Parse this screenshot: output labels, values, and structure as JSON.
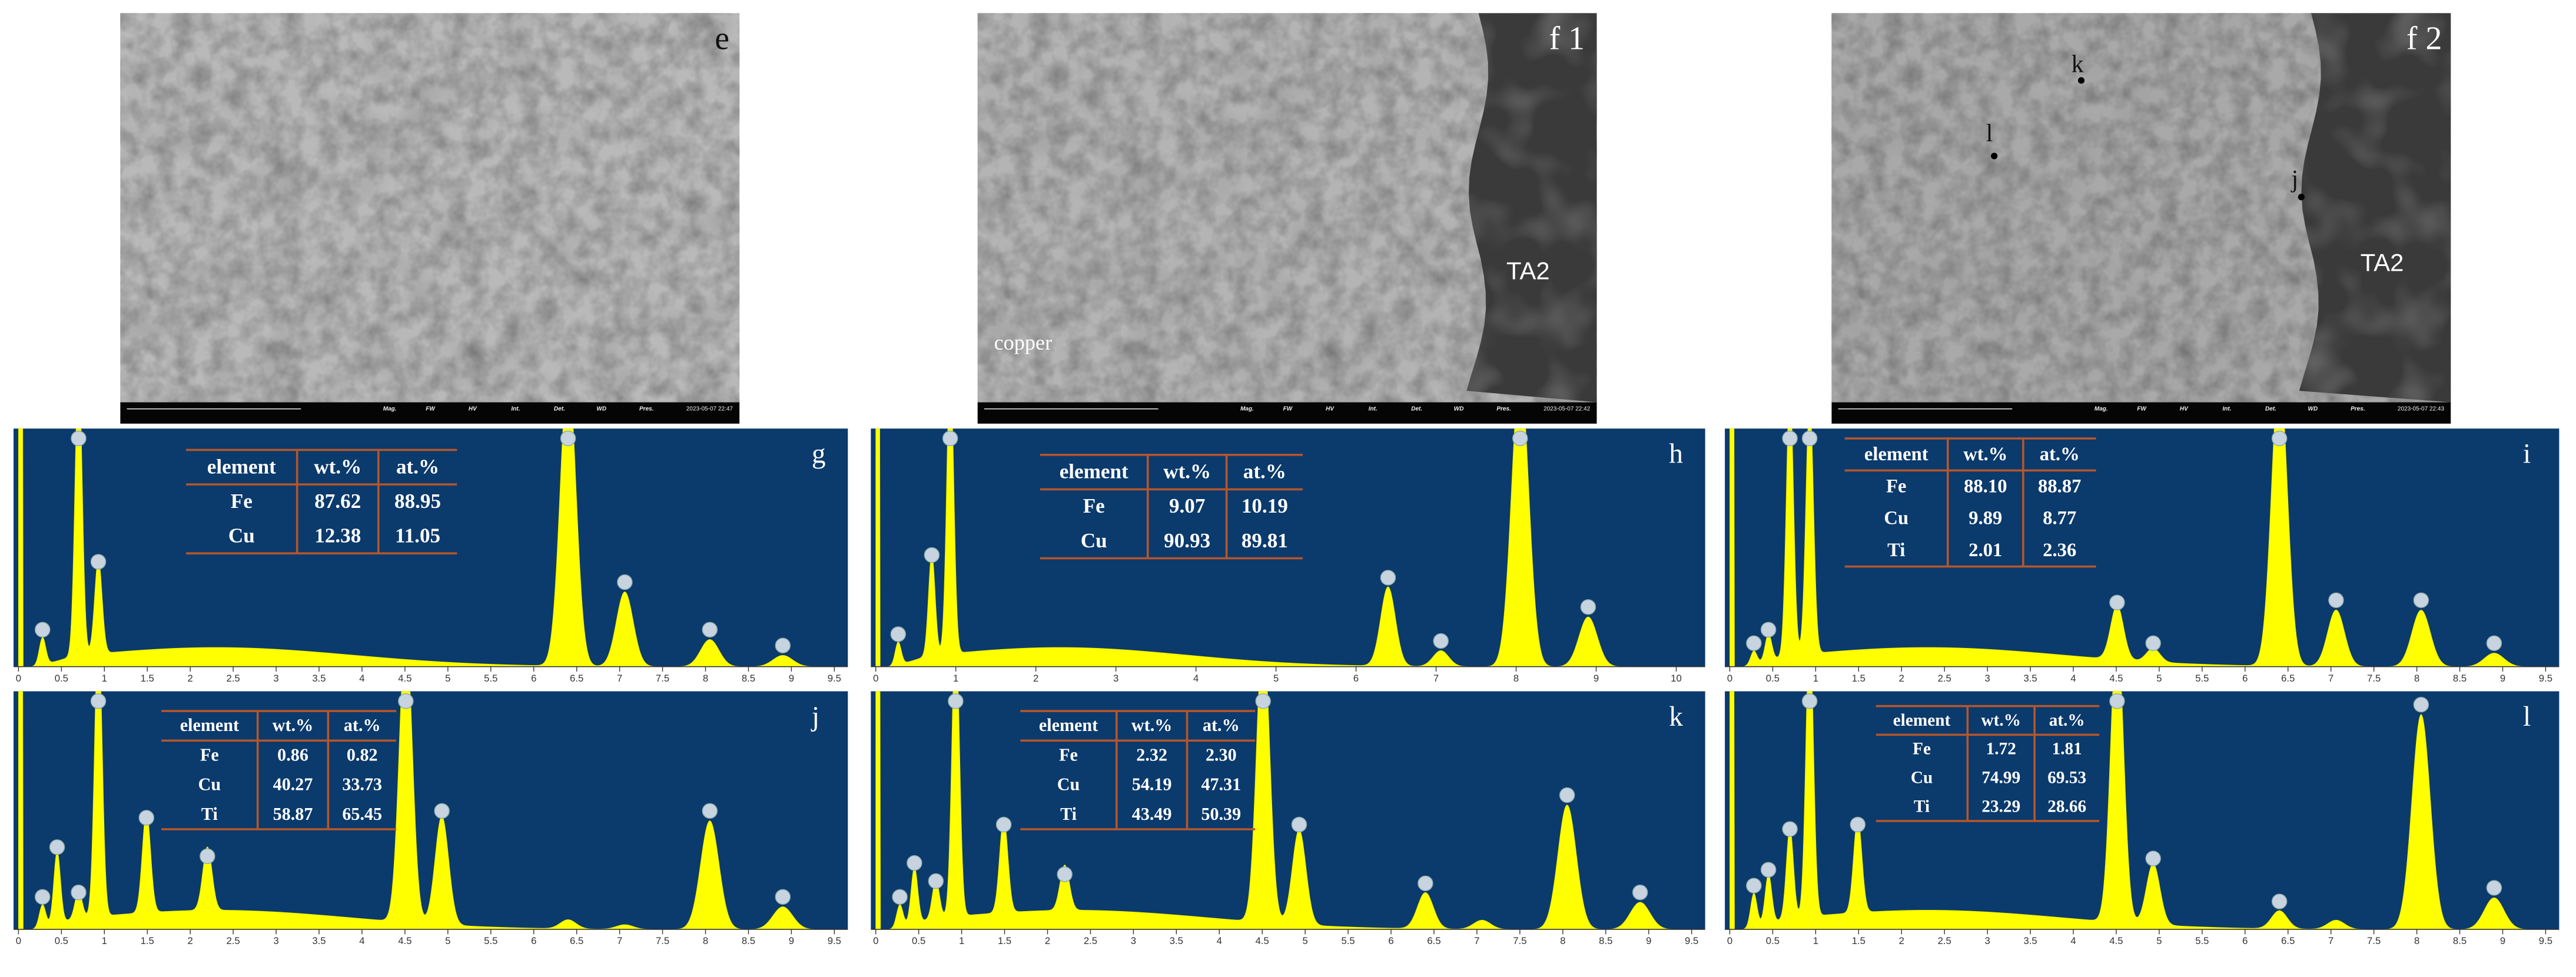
{
  "sem_panels": [
    {
      "label": "e",
      "annotations": [],
      "timestamp": "2023-05-07 22:47"
    },
    {
      "label": "f 1",
      "annotations": [
        "copper",
        "TA2"
      ],
      "timestamp": "2023-05-07 22:42"
    },
    {
      "label": "f 2",
      "annotations": [
        "k",
        "l",
        "j",
        "TA2"
      ],
      "timestamp": "2023-05-07 22:43"
    }
  ],
  "info_bar_headers": [
    "Mag.",
    "FW",
    "HV",
    "Int.",
    "Det.",
    "WD",
    "Pres."
  ],
  "spectra": [
    {
      "label": "g",
      "xlim": [
        0,
        9.6
      ],
      "xticks": [
        0,
        0.5,
        1,
        1.5,
        2,
        2.5,
        3,
        3.5,
        4,
        4.5,
        5,
        5.5,
        6,
        6.5,
        7,
        7.5,
        8,
        8.5,
        9,
        9.5
      ],
      "table": {
        "header": [
          "element",
          "wt.%",
          "at.%"
        ],
        "rows": [
          [
            "Fe",
            "87.62",
            "88.95"
          ],
          [
            "Cu",
            "12.38",
            "11.05"
          ]
        ]
      }
    },
    {
      "label": "h",
      "xlim": [
        0,
        10.3
      ],
      "xticks": [
        0,
        1,
        2,
        3,
        4,
        5,
        6,
        7,
        8,
        9,
        10
      ],
      "table": {
        "header": [
          "element",
          "wt.%",
          "at.%"
        ],
        "rows": [
          [
            "Fe",
            "9.07",
            "10.19"
          ],
          [
            "Cu",
            "90.93",
            "89.81"
          ]
        ]
      }
    },
    {
      "label": "i",
      "xlim": [
        0,
        9.6
      ],
      "xticks": [
        0,
        0.5,
        1,
        1.5,
        2,
        2.5,
        3,
        3.5,
        4,
        4.5,
        5,
        5.5,
        6,
        6.5,
        7,
        7.5,
        8,
        8.5,
        9,
        9.5
      ],
      "table": {
        "header": [
          "element",
          "wt.%",
          "at.%"
        ],
        "rows": [
          [
            "Fe",
            "88.10",
            "88.87"
          ],
          [
            "Cu",
            "9.89",
            "8.77"
          ],
          [
            "Ti",
            "2.01",
            "2.36"
          ]
        ]
      }
    },
    {
      "label": "j",
      "xlim": [
        0,
        9.6
      ],
      "xticks": [
        0,
        0.5,
        1,
        1.5,
        2,
        2.5,
        3,
        3.5,
        4,
        4.5,
        5,
        5.5,
        6,
        6.5,
        7,
        7.5,
        8,
        8.5,
        9,
        9.5
      ],
      "table": {
        "header": [
          "element",
          "wt.%",
          "at.%"
        ],
        "rows": [
          [
            "Fe",
            "0.86",
            "0.82"
          ],
          [
            "Cu",
            "40.27",
            "33.73"
          ],
          [
            "Ti",
            "58.87",
            "65.45"
          ]
        ]
      }
    },
    {
      "label": "k",
      "xlim": [
        0,
        9.6
      ],
      "xticks": [
        0,
        0.5,
        1,
        1.5,
        2,
        2.5,
        3,
        3.5,
        4,
        4.5,
        5,
        5.5,
        6,
        6.5,
        7,
        7.5,
        8,
        8.5,
        9,
        9.5
      ],
      "table": {
        "header": [
          "element",
          "wt.%",
          "at.%"
        ],
        "rows": [
          [
            "Fe",
            "2.32",
            "2.30"
          ],
          [
            "Cu",
            "54.19",
            "47.31"
          ],
          [
            "Ti",
            "43.49",
            "50.39"
          ]
        ]
      }
    },
    {
      "label": "l",
      "xlim": [
        0,
        9.6
      ],
      "xticks": [
        0,
        0.5,
        1,
        1.5,
        2,
        2.5,
        3,
        3.5,
        4,
        4.5,
        5,
        5.5,
        6,
        6.5,
        7,
        7.5,
        8,
        8.5,
        9,
        9.5
      ],
      "table": {
        "header": [
          "element",
          "wt.%",
          "at.%"
        ],
        "rows": [
          [
            "Fe",
            "1.72",
            "1.81"
          ],
          [
            "Cu",
            "74.99",
            "69.53"
          ],
          [
            "Ti",
            "23.29",
            "28.66"
          ]
        ]
      }
    }
  ]
}
